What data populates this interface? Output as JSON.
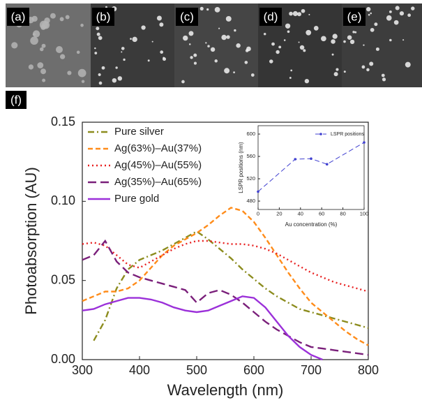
{
  "panel_labels": [
    "(a)",
    "(b)",
    "(c)",
    "(d)",
    "(e)"
  ],
  "chart_label": "(f)",
  "chart_data": [
    {
      "type": "line",
      "x_label": "Wavelength (nm)",
      "y_label": "Photoabsorption (AU)",
      "xlim": [
        300,
        800
      ],
      "xticks": [
        300,
        400,
        500,
        600,
        700,
        800
      ],
      "ylim": [
        0,
        0.15
      ],
      "yticks": [
        {
          "value": 0,
          "label": "0.00"
        },
        {
          "value": 0.05,
          "label": "0.05"
        },
        {
          "value": 0.1,
          "label": "0.10"
        },
        {
          "value": 0.15,
          "label": "0.15"
        }
      ],
      "legend": "upper left",
      "x": [
        300,
        320,
        340,
        360,
        380,
        400,
        420,
        440,
        460,
        480,
        500,
        520,
        540,
        560,
        580,
        600,
        620,
        640,
        660,
        680,
        700,
        720,
        740,
        760,
        780,
        800
      ],
      "series": [
        {
          "name": "Pure silver",
          "color": "#8c8c1e",
          "style": "dashdot",
          "values": [
            null,
            0.012,
            0.025,
            0.045,
            0.057,
            0.063,
            0.066,
            0.069,
            0.073,
            0.077,
            0.081,
            0.076,
            0.07,
            0.064,
            0.057,
            0.051,
            0.045,
            0.04,
            0.036,
            0.032,
            0.03,
            0.028,
            0.026,
            0.024,
            0.022,
            0.02
          ]
        },
        {
          "name": "Ag(63%)–Au(37%)",
          "color": "#ff8c1a",
          "style": "dash",
          "values": [
            0.037,
            0.04,
            0.043,
            0.043,
            0.045,
            0.05,
            0.058,
            0.066,
            0.072,
            0.076,
            0.08,
            0.085,
            0.091,
            0.096,
            0.094,
            0.087,
            0.077,
            0.066,
            0.055,
            0.045,
            0.036,
            0.03,
            0.024,
            0.018,
            0.013,
            0.009
          ]
        },
        {
          "name": "Ag(45%)–Au(55%)",
          "color": "#e82020",
          "style": "dot",
          "values": [
            0.073,
            0.074,
            0.072,
            0.066,
            0.06,
            0.058,
            0.062,
            0.066,
            0.07,
            0.073,
            0.075,
            0.075,
            0.074,
            0.073,
            0.073,
            0.072,
            0.07,
            0.067,
            0.063,
            0.059,
            0.055,
            0.052,
            0.049,
            0.047,
            0.045,
            0.043
          ]
        },
        {
          "name": "Ag(35%)–Au(65%)",
          "color": "#7a1f7a",
          "style": "longdash",
          "values": [
            0.063,
            0.066,
            0.075,
            0.062,
            0.055,
            0.052,
            0.05,
            0.048,
            0.046,
            0.044,
            0.036,
            0.042,
            0.044,
            0.041,
            0.036,
            0.03,
            0.024,
            0.019,
            0.015,
            0.011,
            0.008,
            0.007,
            0.006,
            0.005,
            0.004,
            0.003
          ]
        },
        {
          "name": "Pure gold",
          "color": "#9b30d9",
          "style": "solid",
          "values": [
            0.031,
            0.032,
            0.035,
            0.037,
            0.039,
            0.039,
            0.038,
            0.036,
            0.033,
            0.031,
            0.03,
            0.031,
            0.034,
            0.037,
            0.04,
            0.039,
            0.033,
            0.024,
            0.015,
            0.008,
            0.003,
            0,
            null,
            null,
            null,
            null
          ]
        }
      ]
    },
    {
      "type": "line",
      "x_label": "Au concentration (%)",
      "y_label": "LSPR positions (nm)",
      "xlim": [
        0,
        100
      ],
      "xticks": [
        0,
        20,
        40,
        60,
        80,
        100
      ],
      "ylim": [
        465,
        615
      ],
      "yticks": [
        480,
        520,
        560,
        600
      ],
      "legend": "upper right",
      "markers": true,
      "x": [
        0,
        35,
        50,
        65,
        100
      ],
      "series": [
        {
          "name": "LSPR positions",
          "color": "#4040d0",
          "style": "dash",
          "values": [
            497,
            555,
            556,
            546,
            585
          ]
        }
      ]
    }
  ]
}
